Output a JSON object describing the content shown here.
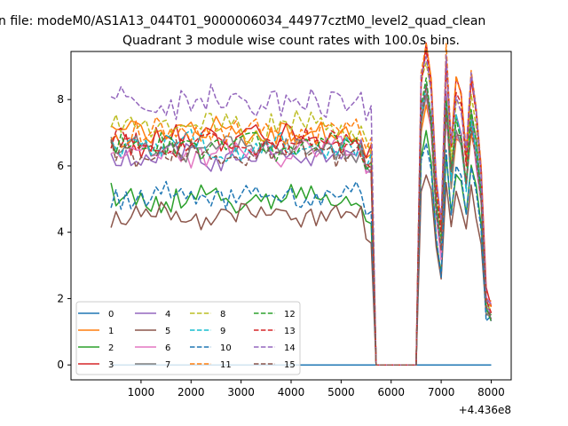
{
  "figure": {
    "suptitle": "n file: modeM0/AS1A13_044T01_9000006034_44977cztM0_level2_quad_clean",
    "offset_text": "+4.436e8"
  },
  "chart_data": {
    "type": "line",
    "title": "Quadrant 3 module wise count rates with 100.0s bins.",
    "xlabel": "",
    "ylabel": "",
    "x_offset": 443600000,
    "xlim": [
      -400,
      8400
    ],
    "ylim": [
      -0.45,
      9.45
    ],
    "x_ticks": [
      1000,
      2000,
      3000,
      4000,
      5000,
      6000,
      7000,
      8000
    ],
    "x_tick_labels": [
      "1000",
      "2000",
      "3000",
      "4000",
      "5000",
      "6000",
      "7000",
      "8000"
    ],
    "y_ticks": [
      0,
      2,
      4,
      6,
      8
    ],
    "y_tick_labels": [
      "0",
      "2",
      "4",
      "6",
      "8"
    ],
    "grid": false,
    "legend_position": "lower-left",
    "legend_columns": 4,
    "x_bins": {
      "start": 400,
      "step": 100,
      "end": 8000
    },
    "gap_x": [
      5600,
      6500
    ],
    "series": [
      {
        "name": "0",
        "color": "#1f77b4",
        "dash": "solid",
        "constant": 0
      },
      {
        "name": "1",
        "color": "#ff7f0e",
        "dash": "solid",
        "level": 7.0,
        "post_level": 6.3,
        "spread": 0.35
      },
      {
        "name": "2",
        "color": "#2ca02c",
        "dash": "solid",
        "level": 5.0,
        "post_level": 5.4,
        "spread": 0.35
      },
      {
        "name": "3",
        "color": "#d62728",
        "dash": "solid",
        "level": 6.8,
        "post_level": 7.6,
        "spread": 0.45
      },
      {
        "name": "4",
        "color": "#9467bd",
        "dash": "solid",
        "level": 6.3,
        "post_level": 6.7,
        "spread": 0.35
      },
      {
        "name": "5",
        "color": "#8c564b",
        "dash": "solid",
        "level": 4.5,
        "post_level": 4.7,
        "spread": 0.3
      },
      {
        "name": "6",
        "color": "#e377c2",
        "dash": "solid",
        "level": 6.4,
        "post_level": 6.3,
        "spread": 0.4
      },
      {
        "name": "7",
        "color": "#7f7f7f",
        "dash": "solid",
        "level": 6.5,
        "post_level": 6.5,
        "spread": 0.35
      },
      {
        "name": "8",
        "color": "#bcbd22",
        "dash": "dashed",
        "level": 7.2,
        "post_level": 7.4,
        "spread": 0.4
      },
      {
        "name": "9",
        "color": "#17becf",
        "dash": "dashed",
        "level": 6.6,
        "post_level": 6.6,
        "spread": 0.35
      },
      {
        "name": "10",
        "color": "#1f77b4",
        "dash": "dashed",
        "level": 5.1,
        "post_level": 5.3,
        "spread": 0.3
      },
      {
        "name": "11",
        "color": "#ff7f0e",
        "dash": "dashed",
        "level": 7.0,
        "post_level": 7.8,
        "spread": 0.35
      },
      {
        "name": "12",
        "color": "#2ca02c",
        "dash": "dashed",
        "level": 6.6,
        "post_level": 6.7,
        "spread": 0.35
      },
      {
        "name": "13",
        "color": "#d62728",
        "dash": "dashed",
        "level": 6.7,
        "post_level": 7.5,
        "spread": 0.35
      },
      {
        "name": "14",
        "color": "#9467bd",
        "dash": "dashed",
        "level": 7.9,
        "post_level": 7.5,
        "spread": 0.45
      },
      {
        "name": "15",
        "color": "#8c564b",
        "dash": "dashed",
        "level": 6.4,
        "post_level": 6.5,
        "spread": 0.35
      }
    ]
  }
}
